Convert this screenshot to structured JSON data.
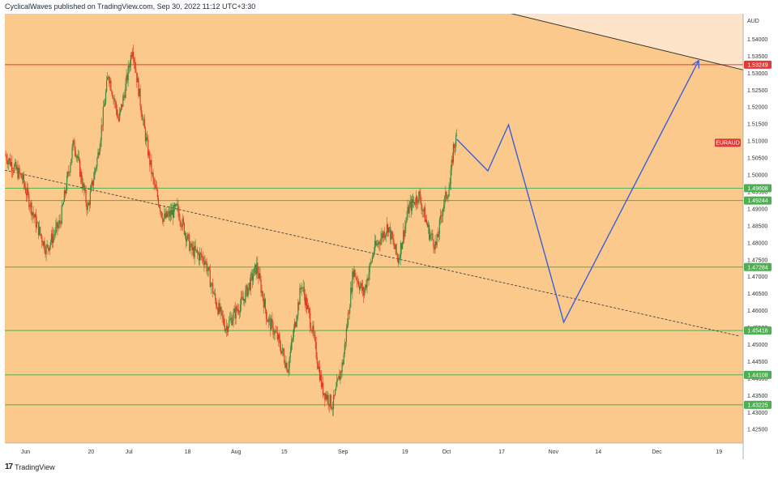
{
  "header": {
    "text": "CyclicalWaves published on TradingView.com, Sep 30, 2022 11:12 UTC+3:30"
  },
  "footer": {
    "logo": "17",
    "brand": "TradingView"
  },
  "colors": {
    "background": "#fbc98c",
    "background_upper": "#fde3c8",
    "up_candle": "#3d8a3d",
    "down_candle": "#e03c1f",
    "resistance_line": "#e53935",
    "support_lines": "#4caf50",
    "projection": "#3b5fd9",
    "trendline": "#444444",
    "symbol_tag": "#e53935"
  },
  "chart_data": {
    "type": "candlestick",
    "symbol": "EURAUD",
    "currency": "AUD",
    "title": "",
    "xlabel": "",
    "ylabel": "AUD",
    "ylim": [
      1.421,
      1.5475
    ],
    "yticks": [
      1.425,
      1.43,
      1.435,
      1.44,
      1.445,
      1.45,
      1.455,
      1.46,
      1.465,
      1.47,
      1.475,
      1.48,
      1.485,
      1.49,
      1.495,
      1.5,
      1.505,
      1.51,
      1.515,
      1.52,
      1.525,
      1.53,
      1.535,
      1.54
    ],
    "ytick_labels": [
      "1.42500",
      "1.43000",
      "1.43500",
      "1.44000",
      "1.44500",
      "1.45000",
      "1.45500",
      "1.46000",
      "1.46500",
      "1.47000",
      "1.47500",
      "1.48000",
      "1.48500",
      "1.49000",
      "1.49500",
      "1.50000",
      "1.50500",
      "1.51000",
      "1.51500",
      "1.52000",
      "1.52500",
      "1.53000",
      "1.53500",
      "1.54000"
    ],
    "x_ticks": [
      {
        "label": "Jun",
        "day": 3
      },
      {
        "label": "20",
        "day": 22
      },
      {
        "label": "Jul",
        "day": 33
      },
      {
        "label": "18",
        "day": 50
      },
      {
        "label": "Aug",
        "day": 64
      },
      {
        "label": "15",
        "day": 78
      },
      {
        "label": "Sep",
        "day": 95
      },
      {
        "label": "19",
        "day": 113
      },
      {
        "label": "Oct",
        "day": 125
      },
      {
        "label": "17",
        "day": 141
      },
      {
        "label": "Nov",
        "day": 156
      },
      {
        "label": "14",
        "day": 169
      },
      {
        "label": "Dec",
        "day": 186
      },
      {
        "label": "19",
        "day": 204
      }
    ],
    "xlim_days": [
      -3,
      211
    ],
    "price_waypoints": [
      {
        "day": -3,
        "price": 1.506
      },
      {
        "day": 2,
        "price": 1.499
      },
      {
        "day": 6,
        "price": 1.486
      },
      {
        "day": 9,
        "price": 1.478
      },
      {
        "day": 13,
        "price": 1.486
      },
      {
        "day": 17,
        "price": 1.51
      },
      {
        "day": 21,
        "price": 1.49
      },
      {
        "day": 24,
        "price": 1.506
      },
      {
        "day": 27,
        "price": 1.53
      },
      {
        "day": 30,
        "price": 1.516
      },
      {
        "day": 32,
        "price": 1.526
      },
      {
        "day": 34,
        "price": 1.538
      },
      {
        "day": 37,
        "price": 1.516
      },
      {
        "day": 40,
        "price": 1.498
      },
      {
        "day": 43,
        "price": 1.487
      },
      {
        "day": 47,
        "price": 1.49
      },
      {
        "day": 51,
        "price": 1.478
      },
      {
        "day": 55,
        "price": 1.475
      },
      {
        "day": 58,
        "price": 1.463
      },
      {
        "day": 61,
        "price": 1.455
      },
      {
        "day": 66,
        "price": 1.463
      },
      {
        "day": 70,
        "price": 1.473
      },
      {
        "day": 73,
        "price": 1.458
      },
      {
        "day": 76,
        "price": 1.452
      },
      {
        "day": 79,
        "price": 1.443
      },
      {
        "day": 83,
        "price": 1.468
      },
      {
        "day": 86,
        "price": 1.455
      },
      {
        "day": 89,
        "price": 1.437
      },
      {
        "day": 92,
        "price": 1.432
      },
      {
        "day": 95,
        "price": 1.445
      },
      {
        "day": 98,
        "price": 1.472
      },
      {
        "day": 101,
        "price": 1.465
      },
      {
        "day": 104,
        "price": 1.478
      },
      {
        "day": 108,
        "price": 1.485
      },
      {
        "day": 111,
        "price": 1.475
      },
      {
        "day": 114,
        "price": 1.49
      },
      {
        "day": 117,
        "price": 1.494
      },
      {
        "day": 120,
        "price": 1.483
      },
      {
        "day": 122,
        "price": 1.479
      },
      {
        "day": 124,
        "price": 1.491
      },
      {
        "day": 126,
        "price": 1.497
      },
      {
        "day": 127,
        "price": 1.508
      },
      {
        "day": 128,
        "price": 1.511
      }
    ],
    "resistance": {
      "price": 1.53249,
      "label": "1.53249"
    },
    "supports": [
      {
        "price": 1.49608,
        "label": "1.49608"
      },
      {
        "price": 1.49244,
        "label": "1.49244"
      },
      {
        "price": 1.47284,
        "label": "1.47284"
      },
      {
        "price": 1.45416,
        "label": "1.45416"
      },
      {
        "price": 1.44108,
        "label": "1.44108"
      },
      {
        "price": 1.43225,
        "label": "1.43225"
      }
    ],
    "symbol_tag": {
      "price": 1.5095,
      "label": "EURAUD"
    },
    "trendline": [
      {
        "day": -3,
        "price": 1.5014
      },
      {
        "day": 210,
        "price": 1.4525
      }
    ],
    "descending_resistance": [
      {
        "day": 142,
        "price": 1.548
      },
      {
        "day": 210,
        "price": 1.5312
      }
    ],
    "projection": [
      {
        "day": 128,
        "price": 1.5105
      },
      {
        "day": 137,
        "price": 1.5012
      },
      {
        "day": 143,
        "price": 1.5148
      },
      {
        "day": 159,
        "price": 1.4566
      },
      {
        "day": 198,
        "price": 1.5335
      }
    ]
  }
}
